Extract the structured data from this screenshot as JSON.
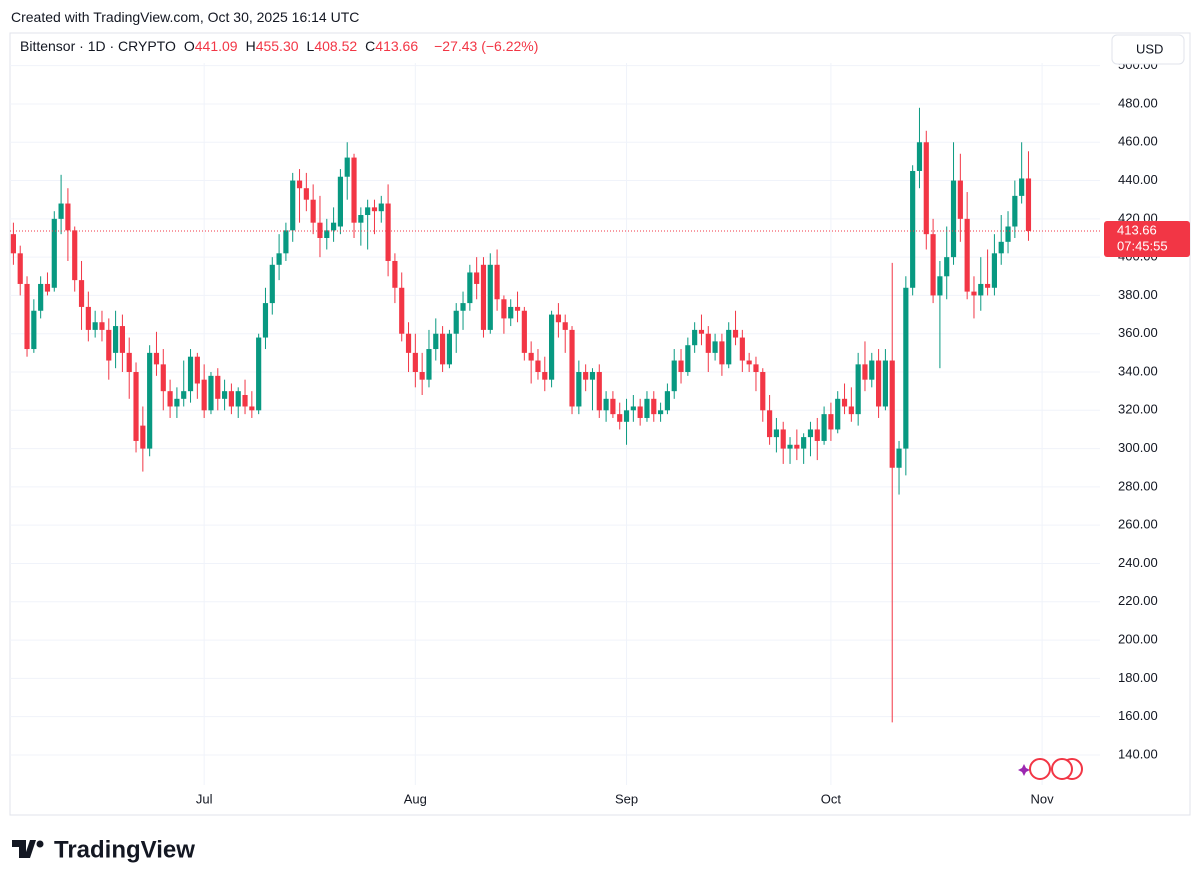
{
  "header": {
    "created": "Created with TradingView.com, Oct 30, 2025 16:14 UTC",
    "symbol": "Bittensor · 1D · CRYPTO",
    "ohlc": [
      {
        "key": "O",
        "value_label": "441.09"
      },
      {
        "key": "H",
        "value_label": "455.30"
      },
      {
        "key": "L",
        "value_label": "408.52"
      },
      {
        "key": "C",
        "value_label": "413.66"
      }
    ],
    "change": "−27.43 (−6.22%)",
    "currency": "USD",
    "countdown": "07:45:55"
  },
  "brand": "TradingView",
  "chart_data": {
    "type": "candlestick",
    "up_color": "#089981",
    "down_color": "#f23645",
    "grid": true,
    "categories": [
      null,
      null,
      null,
      null,
      null,
      null,
      null,
      null,
      null,
      null,
      null,
      null,
      null,
      null,
      null,
      null,
      null,
      null,
      null,
      null,
      null,
      null,
      null,
      null,
      null,
      null,
      null,
      null,
      "Jul",
      null,
      null,
      null,
      null,
      null,
      null,
      null,
      null,
      null,
      null,
      null,
      null,
      null,
      null,
      null,
      null,
      null,
      null,
      null,
      null,
      null,
      null,
      null,
      null,
      null,
      null,
      null,
      null,
      null,
      null,
      "Aug",
      null,
      null,
      null,
      null,
      null,
      null,
      null,
      null,
      null,
      null,
      null,
      null,
      null,
      null,
      null,
      null,
      null,
      null,
      null,
      null,
      null,
      null,
      null,
      null,
      null,
      null,
      null,
      null,
      null,
      null,
      "Sep",
      null,
      null,
      null,
      null,
      null,
      null,
      null,
      null,
      null,
      null,
      null,
      null,
      null,
      null,
      null,
      null,
      null,
      null,
      null,
      null,
      null,
      null,
      null,
      null,
      null,
      null,
      null,
      null,
      null,
      "Oct",
      null,
      null,
      null,
      null,
      null,
      null,
      null,
      null,
      null,
      null,
      null,
      null,
      null,
      null,
      null,
      null,
      null,
      null,
      null,
      null,
      null,
      null,
      null,
      null,
      null,
      null,
      null,
      null,
      null,
      null,
      "Nov",
      null,
      null,
      null,
      null,
      null,
      null,
      null,
      null
    ],
    "open": [
      412,
      402,
      386,
      352,
      372,
      386,
      384,
      420,
      428,
      414,
      388,
      374,
      362,
      366,
      362,
      350,
      364,
      350,
      340,
      312,
      300,
      350,
      344,
      330,
      322,
      326,
      330,
      348,
      336,
      320,
      338,
      326,
      330,
      322,
      328,
      322,
      320,
      358,
      376,
      396,
      402,
      414,
      440,
      436,
      430,
      418,
      410,
      414,
      416,
      442,
      452,
      418,
      422,
      426,
      424,
      428,
      398,
      384,
      360,
      350,
      340,
      336,
      352,
      360,
      344,
      360,
      372,
      376,
      392,
      396,
      362,
      396,
      378,
      368,
      374,
      372,
      350,
      346,
      340,
      336,
      370,
      366,
      362,
      322,
      340,
      336,
      340,
      320,
      326,
      318,
      314,
      320,
      322,
      316,
      326,
      318,
      320,
      330,
      346,
      340,
      354,
      362,
      360,
      350,
      356,
      344,
      362,
      358,
      346,
      344,
      340,
      320,
      306,
      310,
      300,
      302,
      300,
      306,
      310,
      304,
      318,
      310,
      326,
      322,
      318,
      344,
      336,
      346,
      322,
      346,
      290,
      300,
      384,
      445,
      460,
      412,
      380,
      390,
      400,
      440,
      420,
      382,
      380,
      386,
      384,
      402,
      408,
      416,
      432,
      441.09,
      null,
      null,
      null,
      null,
      null,
      null,
      null,
      null,
      null,
      null
    ],
    "high": [
      418,
      406,
      390,
      378,
      390,
      392,
      424,
      443,
      436,
      416,
      398,
      382,
      372,
      372,
      368,
      372,
      370,
      358,
      345,
      322,
      354,
      361,
      352,
      336,
      332,
      346,
      352,
      350,
      344,
      340,
      342,
      336,
      334,
      332,
      336,
      330,
      360,
      384,
      400,
      412,
      418,
      444,
      446,
      444,
      438,
      432,
      420,
      426,
      446,
      460,
      454,
      426,
      430,
      430,
      432,
      438,
      402,
      392,
      366,
      360,
      350,
      362,
      368,
      364,
      362,
      376,
      382,
      396,
      400,
      400,
      402,
      404,
      380,
      378,
      382,
      374,
      356,
      352,
      348,
      372,
      376,
      370,
      364,
      346,
      344,
      342,
      344,
      330,
      330,
      324,
      326,
      328,
      326,
      330,
      330,
      324,
      334,
      352,
      352,
      358,
      366,
      370,
      364,
      360,
      360,
      366,
      372,
      362,
      350,
      348,
      342,
      328,
      316,
      314,
      306,
      310,
      308,
      314,
      316,
      322,
      324,
      330,
      334,
      332,
      350,
      356,
      350,
      352,
      352,
      397,
      304,
      390,
      448,
      478,
      466,
      420,
      398,
      416,
      460,
      454,
      434,
      390,
      400,
      404,
      412,
      422,
      424,
      440,
      460,
      455.3,
      null,
      null,
      null,
      null,
      null,
      null,
      null,
      null,
      null,
      null
    ],
    "low": [
      396,
      380,
      348,
      350,
      368,
      380,
      382,
      412,
      398,
      382,
      362,
      356,
      358,
      356,
      336,
      342,
      340,
      326,
      298,
      288,
      296,
      338,
      320,
      316,
      316,
      322,
      324,
      326,
      316,
      318,
      320,
      320,
      318,
      316,
      318,
      316,
      318,
      352,
      370,
      388,
      398,
      408,
      418,
      424,
      412,
      400,
      404,
      408,
      412,
      430,
      410,
      406,
      404,
      412,
      418,
      390,
      376,
      356,
      340,
      332,
      328,
      332,
      346,
      340,
      342,
      350,
      362,
      372,
      378,
      358,
      360,
      372,
      360,
      364,
      366,
      346,
      334,
      336,
      330,
      332,
      358,
      350,
      318,
      318,
      330,
      320,
      316,
      314,
      316,
      310,
      302,
      314,
      312,
      314,
      314,
      314,
      318,
      326,
      334,
      338,
      350,
      354,
      340,
      346,
      338,
      342,
      354,
      340,
      340,
      330,
      314,
      302,
      298,
      292,
      292,
      294,
      292,
      296,
      294,
      302,
      304,
      308,
      318,
      314,
      312,
      330,
      332,
      316,
      320,
      157,
      276,
      286,
      380,
      436,
      404,
      376,
      342,
      378,
      396,
      408,
      378,
      368,
      372,
      380,
      380,
      396,
      402,
      410,
      428,
      408.52,
      null,
      null,
      null,
      null,
      null,
      null,
      null,
      null,
      null,
      null
    ],
    "close": [
      402,
      386,
      352,
      372,
      386,
      382,
      420,
      428,
      414,
      388,
      374,
      362,
      366,
      362,
      346,
      364,
      350,
      340,
      304,
      300,
      350,
      344,
      330,
      322,
      326,
      330,
      348,
      334,
      320,
      338,
      326,
      330,
      322,
      330,
      322,
      320,
      358,
      376,
      396,
      402,
      414,
      440,
      436,
      430,
      418,
      410,
      414,
      418,
      442,
      452,
      418,
      422,
      426,
      424,
      428,
      398,
      384,
      360,
      350,
      340,
      336,
      352,
      360,
      344,
      360,
      372,
      376,
      392,
      386,
      362,
      396,
      378,
      368,
      374,
      372,
      350,
      346,
      340,
      336,
      370,
      366,
      362,
      322,
      340,
      336,
      340,
      320,
      326,
      318,
      314,
      320,
      322,
      316,
      326,
      318,
      320,
      330,
      346,
      340,
      354,
      362,
      360,
      350,
      356,
      344,
      362,
      358,
      346,
      344,
      340,
      320,
      306,
      310,
      300,
      302,
      300,
      306,
      310,
      304,
      318,
      310,
      326,
      322,
      318,
      344,
      336,
      346,
      322,
      346,
      290,
      300,
      384,
      445,
      460,
      412,
      380,
      390,
      400,
      440,
      420,
      382,
      380,
      386,
      384,
      402,
      408,
      416,
      432,
      441.09,
      413.66,
      null,
      null,
      null,
      null,
      null,
      null,
      null,
      null,
      null,
      null
    ],
    "ylim": [
      124.3,
      501.4
    ],
    "yticks": [
      {
        "value": 140,
        "label": "140.00"
      },
      {
        "value": 160,
        "label": "160.00"
      },
      {
        "value": 180,
        "label": "180.00"
      },
      {
        "value": 200,
        "label": "200.00"
      },
      {
        "value": 220,
        "label": "220.00"
      },
      {
        "value": 240,
        "label": "240.00"
      },
      {
        "value": 260,
        "label": "260.00"
      },
      {
        "value": 280,
        "label": "280.00"
      },
      {
        "value": 300,
        "label": "300.00"
      },
      {
        "value": 320,
        "label": "320.00"
      },
      {
        "value": 340,
        "label": "340.00"
      },
      {
        "value": 360,
        "label": "360.00"
      },
      {
        "value": 380,
        "label": "380.00"
      },
      {
        "value": 400,
        "label": "400.00"
      },
      {
        "value": 420,
        "label": "420.00"
      },
      {
        "value": 440,
        "label": "440.00"
      },
      {
        "value": 460,
        "label": "460.00"
      },
      {
        "value": 480,
        "label": "480.00"
      },
      {
        "value": 500,
        "label": "500.00"
      }
    ]
  }
}
